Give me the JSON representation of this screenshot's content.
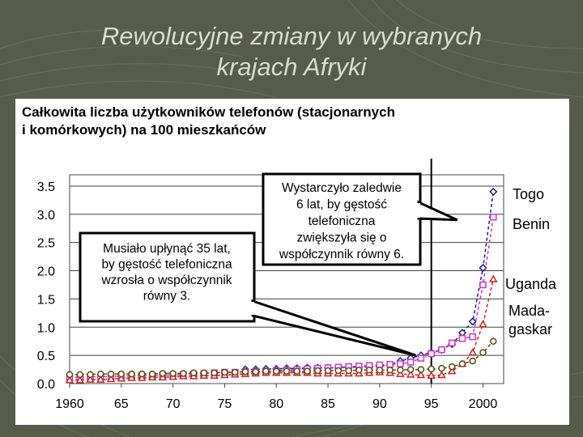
{
  "slide": {
    "title_line1": "Rewolucyjne zmiany w wybranych",
    "title_line2": "krajach Afryki"
  },
  "chart_data": {
    "type": "line",
    "title_line1": "Całkowita liczba użytkowników telefonów (stacjonarnych",
    "title_line2": "i komórkowych) na 100 mieszkańców",
    "xlabel": "",
    "ylabel": "",
    "xlim": [
      1960,
      2002
    ],
    "ylim": [
      0,
      3.7
    ],
    "x_ticks": [
      1960,
      1965,
      1970,
      1975,
      1980,
      1985,
      1990,
      1995,
      2000
    ],
    "x_tick_labels": [
      "1960",
      "65",
      "70",
      "75",
      "80",
      "85",
      "90",
      "95",
      "2000"
    ],
    "y_ticks": [
      0,
      0.5,
      1.0,
      1.5,
      2.0,
      2.5,
      3.0,
      3.5
    ],
    "y_tick_labels": [
      "0.0",
      "0.5",
      "1.0",
      "1.5",
      "2.0",
      "2.5",
      "3.0",
      "3.5"
    ],
    "reference_line_x": 1995,
    "series": [
      {
        "name": "Togo",
        "color": "#1a237e",
        "marker": "diamond",
        "x": [
          1977,
          1978,
          1979,
          1980,
          1981,
          1982,
          1983,
          1984,
          1985,
          1986,
          1987,
          1988,
          1989,
          1990,
          1991,
          1992,
          1993,
          1994,
          1995,
          1996,
          1997,
          1998,
          1999,
          2000,
          2001
        ],
        "values": [
          0.25,
          0.25,
          0.26,
          0.26,
          0.27,
          0.27,
          0.28,
          0.28,
          0.28,
          0.28,
          0.29,
          0.29,
          0.3,
          0.31,
          0.33,
          0.4,
          0.45,
          0.5,
          0.55,
          0.6,
          0.7,
          0.9,
          1.1,
          2.05,
          3.4
        ]
      },
      {
        "name": "Benin",
        "color": "#cc33cc",
        "marker": "square",
        "x": [
          1960,
          1961,
          1962,
          1963,
          1964,
          1965,
          1966,
          1967,
          1968,
          1969,
          1970,
          1971,
          1972,
          1973,
          1974,
          1975,
          1976,
          1977,
          1978,
          1979,
          1980,
          1981,
          1982,
          1983,
          1984,
          1985,
          1986,
          1987,
          1988,
          1989,
          1990,
          1991,
          1992,
          1993,
          1994,
          1995,
          1996,
          1997,
          1998,
          1999,
          2000,
          2001
        ],
        "values": [
          0.11,
          0.11,
          0.12,
          0.12,
          0.13,
          0.13,
          0.14,
          0.14,
          0.14,
          0.15,
          0.15,
          0.16,
          0.17,
          0.18,
          0.19,
          0.2,
          0.2,
          0.21,
          0.22,
          0.22,
          0.23,
          0.24,
          0.25,
          0.26,
          0.27,
          0.28,
          0.29,
          0.3,
          0.31,
          0.32,
          0.33,
          0.34,
          0.35,
          0.38,
          0.45,
          0.53,
          0.6,
          0.72,
          0.8,
          0.83,
          1.75,
          2.95
        ]
      },
      {
        "name": "Uganda",
        "color": "#cc2222",
        "marker": "triangle",
        "x": [
          1960,
          1961,
          1962,
          1963,
          1964,
          1965,
          1966,
          1967,
          1968,
          1969,
          1970,
          1971,
          1972,
          1973,
          1974,
          1975,
          1976,
          1977,
          1978,
          1979,
          1980,
          1981,
          1982,
          1983,
          1984,
          1985,
          1986,
          1987,
          1988,
          1989,
          1990,
          1991,
          1992,
          1993,
          1994,
          1995,
          1996,
          1997,
          1998,
          1999,
          2000,
          2001
        ],
        "values": [
          0.06,
          0.06,
          0.07,
          0.07,
          0.08,
          0.09,
          0.1,
          0.1,
          0.11,
          0.11,
          0.12,
          0.13,
          0.13,
          0.14,
          0.14,
          0.15,
          0.16,
          0.17,
          0.18,
          0.19,
          0.19,
          0.19,
          0.19,
          0.19,
          0.18,
          0.18,
          0.18,
          0.18,
          0.18,
          0.19,
          0.2,
          0.19,
          0.17,
          0.16,
          0.15,
          0.14,
          0.15,
          0.22,
          0.35,
          0.55,
          1.05,
          1.85
        ]
      },
      {
        "name": "Mada- gaskar",
        "color": "#5a4a10",
        "marker": "circle",
        "x": [
          1960,
          1961,
          1962,
          1963,
          1964,
          1965,
          1966,
          1967,
          1968,
          1969,
          1970,
          1971,
          1972,
          1973,
          1974,
          1975,
          1976,
          1977,
          1978,
          1979,
          1980,
          1981,
          1982,
          1983,
          1984,
          1985,
          1986,
          1987,
          1988,
          1989,
          1990,
          1991,
          1992,
          1993,
          1994,
          1995,
          1996,
          1997,
          1998,
          1999,
          2000,
          2001
        ],
        "values": [
          0.16,
          0.16,
          0.16,
          0.17,
          0.17,
          0.17,
          0.17,
          0.17,
          0.17,
          0.18,
          0.18,
          0.18,
          0.19,
          0.19,
          0.19,
          0.2,
          0.2,
          0.21,
          0.21,
          0.22,
          0.22,
          0.22,
          0.22,
          0.22,
          0.23,
          0.23,
          0.23,
          0.23,
          0.24,
          0.24,
          0.24,
          0.24,
          0.24,
          0.25,
          0.25,
          0.26,
          0.27,
          0.3,
          0.35,
          0.4,
          0.55,
          0.75
        ]
      }
    ],
    "series_labels": [
      {
        "name": "Togo",
        "text": "Togo"
      },
      {
        "name": "Benin",
        "text": "Benin"
      },
      {
        "name": "Uganda",
        "text": "Uganda"
      },
      {
        "name": "Madagaskar",
        "text_line1": "Mada-",
        "text_line2": "gaskar"
      }
    ],
    "annotations": [
      {
        "id": "annotation-6-years",
        "lines": [
          "Wystarczyło zaledwie",
          "6 lat, by gęstość",
          "telefoniczna",
          "zwiększyła się o",
          "współczynnik równy 6."
        ],
        "points_to": {
          "x": 1997.5,
          "y": 2.9
        }
      },
      {
        "id": "annotation-35-years",
        "lines": [
          "Musiało upłynąć 35 lat,",
          "by gęstość telefoniczna",
          "wzrosła o współczynnik",
          "równy 3."
        ],
        "points_to": {
          "x": 1993.5,
          "y": 0.5
        }
      }
    ]
  }
}
